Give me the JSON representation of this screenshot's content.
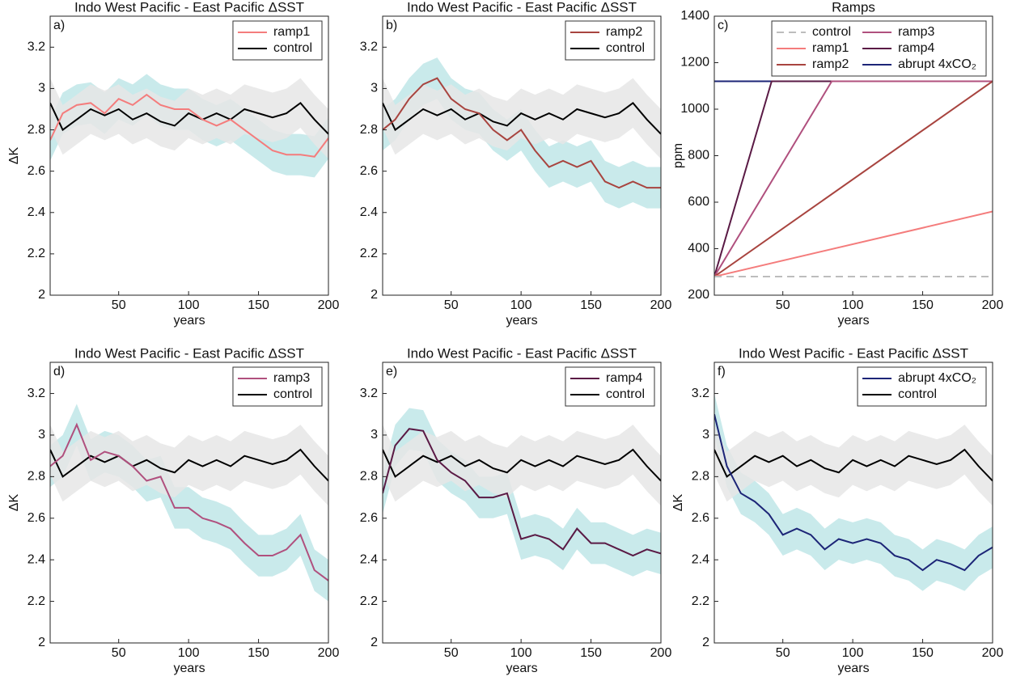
{
  "chart_data": [
    {
      "type": "line",
      "title": "Indo West Pacific - East Pacific ΔSST",
      "panel_label": "a)",
      "xlabel": "years",
      "ylabel": "ΔK",
      "x": [
        1,
        10,
        20,
        30,
        40,
        50,
        60,
        70,
        80,
        90,
        100,
        110,
        120,
        130,
        140,
        150,
        160,
        170,
        180,
        190,
        200
      ],
      "xlim": [
        1,
        200
      ],
      "ylim": [
        2,
        3.35
      ],
      "xticks": [
        50,
        100,
        150,
        200
      ],
      "yticks": [
        2,
        2.2,
        2.4,
        2.6,
        2.8,
        3,
        3.2
      ],
      "series": [
        {
          "name": "ramp1",
          "color": "#f47c7c",
          "band_color": "#bfe6e8",
          "values": [
            2.75,
            2.88,
            2.92,
            2.93,
            2.88,
            2.95,
            2.92,
            2.97,
            2.92,
            2.9,
            2.9,
            2.85,
            2.82,
            2.85,
            2.8,
            2.75,
            2.7,
            2.68,
            2.68,
            2.67,
            2.76
          ],
          "lower": [
            2.65,
            2.78,
            2.82,
            2.83,
            2.78,
            2.85,
            2.82,
            2.87,
            2.82,
            2.8,
            2.8,
            2.75,
            2.72,
            2.75,
            2.7,
            2.65,
            2.6,
            2.58,
            2.58,
            2.57,
            2.66
          ],
          "upper": [
            2.85,
            2.98,
            3.02,
            3.03,
            2.98,
            3.05,
            3.02,
            3.07,
            3.02,
            3.0,
            3.0,
            2.95,
            2.92,
            2.95,
            2.9,
            2.85,
            2.8,
            2.78,
            2.78,
            2.77,
            2.86
          ]
        },
        {
          "name": "control",
          "color": "#000000",
          "band_color": "#e6e6e6",
          "values": [
            2.93,
            2.8,
            2.85,
            2.9,
            2.87,
            2.9,
            2.85,
            2.88,
            2.84,
            2.82,
            2.88,
            2.85,
            2.88,
            2.85,
            2.9,
            2.88,
            2.86,
            2.88,
            2.93,
            2.85,
            2.78
          ],
          "lower": [
            2.81,
            2.68,
            2.73,
            2.78,
            2.75,
            2.78,
            2.73,
            2.76,
            2.72,
            2.7,
            2.76,
            2.73,
            2.76,
            2.73,
            2.78,
            2.76,
            2.74,
            2.76,
            2.81,
            2.73,
            2.66
          ],
          "upper": [
            3.05,
            2.92,
            2.97,
            3.02,
            2.99,
            3.02,
            2.97,
            3.0,
            2.96,
            2.94,
            3.0,
            2.97,
            3.0,
            2.97,
            3.02,
            3.0,
            2.98,
            3.0,
            3.05,
            2.97,
            2.9
          ]
        }
      ]
    },
    {
      "type": "line",
      "title": "Indo West Pacific - East Pacific ΔSST",
      "panel_label": "b)",
      "xlabel": "years",
      "x": [
        1,
        10,
        20,
        30,
        40,
        50,
        60,
        70,
        80,
        90,
        100,
        110,
        120,
        130,
        140,
        150,
        160,
        170,
        180,
        190,
        200
      ],
      "xlim": [
        1,
        200
      ],
      "ylim": [
        2,
        3.35
      ],
      "xticks": [
        50,
        100,
        150,
        200
      ],
      "yticks": [
        2,
        2.2,
        2.4,
        2.6,
        2.8,
        3,
        3.2
      ],
      "series": [
        {
          "name": "ramp2",
          "color": "#a8443f",
          "band_color": "#bfe6e8",
          "values": [
            2.8,
            2.85,
            2.95,
            3.02,
            3.05,
            2.95,
            2.9,
            2.88,
            2.8,
            2.75,
            2.8,
            2.7,
            2.62,
            2.65,
            2.62,
            2.65,
            2.55,
            2.52,
            2.55,
            2.52,
            2.52
          ],
          "lower": [
            2.7,
            2.75,
            2.85,
            2.92,
            2.95,
            2.85,
            2.8,
            2.78,
            2.7,
            2.65,
            2.7,
            2.6,
            2.52,
            2.55,
            2.52,
            2.55,
            2.45,
            2.42,
            2.45,
            2.42,
            2.42
          ],
          "upper": [
            2.9,
            2.95,
            3.05,
            3.12,
            3.15,
            3.05,
            3.0,
            2.98,
            2.9,
            2.85,
            2.9,
            2.8,
            2.72,
            2.75,
            2.72,
            2.75,
            2.65,
            2.62,
            2.65,
            2.62,
            2.62
          ]
        },
        {
          "name": "control",
          "color": "#000000",
          "band_color": "#e6e6e6",
          "values": [
            2.93,
            2.8,
            2.85,
            2.9,
            2.87,
            2.9,
            2.85,
            2.88,
            2.84,
            2.82,
            2.88,
            2.85,
            2.88,
            2.85,
            2.9,
            2.88,
            2.86,
            2.88,
            2.93,
            2.85,
            2.78
          ],
          "lower": [
            2.81,
            2.68,
            2.73,
            2.78,
            2.75,
            2.78,
            2.73,
            2.76,
            2.72,
            2.7,
            2.76,
            2.73,
            2.76,
            2.73,
            2.78,
            2.76,
            2.74,
            2.76,
            2.81,
            2.73,
            2.66
          ],
          "upper": [
            3.05,
            2.92,
            2.97,
            3.02,
            2.99,
            3.02,
            2.97,
            3.0,
            2.96,
            2.94,
            3.0,
            2.97,
            3.0,
            2.97,
            3.02,
            3.0,
            2.98,
            3.0,
            3.05,
            2.97,
            2.9
          ]
        }
      ]
    },
    {
      "type": "ramps",
      "title": "Ramps",
      "panel_label": "c)",
      "xlabel": "years",
      "ylabel": "ppm",
      "xlim": [
        1,
        200
      ],
      "ylim": [
        200,
        1400
      ],
      "xticks": [
        50,
        100,
        150,
        200
      ],
      "yticks": [
        200,
        400,
        600,
        800,
        1000,
        1200,
        1400
      ],
      "series": [
        {
          "name": "control",
          "color": "#bdbdbd",
          "dashed": true,
          "x": [
            1,
            200
          ],
          "values": [
            280,
            280
          ]
        },
        {
          "name": "ramp1",
          "color": "#f47c7c",
          "x": [
            1,
            200
          ],
          "values": [
            280,
            560
          ]
        },
        {
          "name": "ramp2",
          "color": "#a8443f",
          "x": [
            1,
            200
          ],
          "values": [
            280,
            1120
          ]
        },
        {
          "name": "ramp3",
          "color": "#b0507e",
          "x": [
            1,
            85,
            200
          ],
          "values": [
            280,
            1120,
            1120
          ]
        },
        {
          "name": "ramp4",
          "color": "#5a1a45",
          "x": [
            1,
            42,
            200
          ],
          "values": [
            280,
            1120,
            1120
          ]
        },
        {
          "name": "abrupt 4xCO₂",
          "color": "#1c2577",
          "x": [
            1,
            200
          ],
          "values": [
            1120,
            1120
          ]
        }
      ]
    },
    {
      "type": "line",
      "title": "Indo West Pacific - East Pacific ΔSST",
      "panel_label": "d)",
      "xlabel": "years",
      "ylabel": "ΔK",
      "x": [
        1,
        10,
        20,
        30,
        40,
        50,
        60,
        70,
        80,
        90,
        100,
        110,
        120,
        130,
        140,
        150,
        160,
        170,
        180,
        190,
        200
      ],
      "xlim": [
        1,
        200
      ],
      "ylim": [
        2,
        3.35
      ],
      "xticks": [
        50,
        100,
        150,
        200
      ],
      "yticks": [
        2,
        2.2,
        2.4,
        2.6,
        2.8,
        3,
        3.2
      ],
      "series": [
        {
          "name": "ramp3",
          "color": "#b0507e",
          "band_color": "#bfe6e8",
          "values": [
            2.85,
            2.9,
            3.05,
            2.88,
            2.92,
            2.9,
            2.85,
            2.78,
            2.8,
            2.65,
            2.65,
            2.6,
            2.58,
            2.55,
            2.48,
            2.42,
            2.42,
            2.45,
            2.52,
            2.35,
            2.3
          ],
          "lower": [
            2.75,
            2.8,
            2.95,
            2.78,
            2.82,
            2.8,
            2.75,
            2.68,
            2.7,
            2.55,
            2.55,
            2.5,
            2.48,
            2.45,
            2.38,
            2.32,
            2.32,
            2.35,
            2.42,
            2.25,
            2.2
          ],
          "upper": [
            2.95,
            3.0,
            3.15,
            2.98,
            3.02,
            3.0,
            2.95,
            2.88,
            2.9,
            2.75,
            2.75,
            2.7,
            2.68,
            2.65,
            2.58,
            2.52,
            2.52,
            2.55,
            2.62,
            2.45,
            2.4
          ]
        },
        {
          "name": "control",
          "color": "#000000",
          "band_color": "#e6e6e6",
          "values": [
            2.93,
            2.8,
            2.85,
            2.9,
            2.87,
            2.9,
            2.85,
            2.88,
            2.84,
            2.82,
            2.88,
            2.85,
            2.88,
            2.85,
            2.9,
            2.88,
            2.86,
            2.88,
            2.93,
            2.85,
            2.78
          ],
          "lower": [
            2.81,
            2.68,
            2.73,
            2.78,
            2.75,
            2.78,
            2.73,
            2.76,
            2.72,
            2.7,
            2.76,
            2.73,
            2.76,
            2.73,
            2.78,
            2.76,
            2.74,
            2.76,
            2.81,
            2.73,
            2.66
          ],
          "upper": [
            3.05,
            2.92,
            2.97,
            3.02,
            2.99,
            3.02,
            2.97,
            3.0,
            2.96,
            2.94,
            3.0,
            2.97,
            3.0,
            2.97,
            3.02,
            3.0,
            2.98,
            3.0,
            3.05,
            2.97,
            2.9
          ]
        }
      ]
    },
    {
      "type": "line",
      "title": "Indo West Pacific - East Pacific ΔSST",
      "panel_label": "e)",
      "xlabel": "years",
      "x": [
        1,
        10,
        20,
        30,
        40,
        50,
        60,
        70,
        80,
        90,
        100,
        110,
        120,
        130,
        140,
        150,
        160,
        170,
        180,
        190,
        200
      ],
      "xlim": [
        1,
        200
      ],
      "ylim": [
        2,
        3.35
      ],
      "xticks": [
        50,
        100,
        150,
        200
      ],
      "yticks": [
        2,
        2.2,
        2.4,
        2.6,
        2.8,
        3,
        3.2
      ],
      "series": [
        {
          "name": "ramp4",
          "color": "#5a1a45",
          "band_color": "#bfe6e8",
          "values": [
            2.72,
            2.95,
            3.03,
            3.02,
            2.88,
            2.82,
            2.78,
            2.7,
            2.7,
            2.72,
            2.5,
            2.52,
            2.5,
            2.45,
            2.55,
            2.48,
            2.48,
            2.45,
            2.42,
            2.45,
            2.43
          ],
          "lower": [
            2.62,
            2.85,
            2.93,
            2.92,
            2.78,
            2.72,
            2.68,
            2.6,
            2.6,
            2.62,
            2.4,
            2.42,
            2.4,
            2.35,
            2.45,
            2.38,
            2.38,
            2.35,
            2.32,
            2.35,
            2.33
          ],
          "upper": [
            2.82,
            3.05,
            3.13,
            3.12,
            2.98,
            2.92,
            2.88,
            2.8,
            2.8,
            2.82,
            2.6,
            2.62,
            2.6,
            2.55,
            2.65,
            2.58,
            2.58,
            2.55,
            2.52,
            2.55,
            2.53
          ]
        },
        {
          "name": "control",
          "color": "#000000",
          "band_color": "#e6e6e6",
          "values": [
            2.93,
            2.8,
            2.85,
            2.9,
            2.87,
            2.9,
            2.85,
            2.88,
            2.84,
            2.82,
            2.88,
            2.85,
            2.88,
            2.85,
            2.9,
            2.88,
            2.86,
            2.88,
            2.93,
            2.85,
            2.78
          ],
          "lower": [
            2.81,
            2.68,
            2.73,
            2.78,
            2.75,
            2.78,
            2.73,
            2.76,
            2.72,
            2.7,
            2.76,
            2.73,
            2.76,
            2.73,
            2.78,
            2.76,
            2.74,
            2.76,
            2.81,
            2.73,
            2.66
          ],
          "upper": [
            3.05,
            2.92,
            2.97,
            3.02,
            2.99,
            3.02,
            2.97,
            3.0,
            2.96,
            2.94,
            3.0,
            2.97,
            3.0,
            2.97,
            3.02,
            3.0,
            2.98,
            3.0,
            3.05,
            2.97,
            2.9
          ]
        }
      ]
    },
    {
      "type": "line",
      "title": "Indo West Pacific - East Pacific ΔSST",
      "panel_label": "f)",
      "xlabel": "years",
      "ylabel": "ΔK",
      "x": [
        1,
        10,
        20,
        30,
        40,
        50,
        60,
        70,
        80,
        90,
        100,
        110,
        120,
        130,
        140,
        150,
        160,
        170,
        180,
        190,
        200
      ],
      "xlim": [
        1,
        200
      ],
      "ylim": [
        2,
        3.35
      ],
      "xticks": [
        50,
        100,
        150,
        200
      ],
      "yticks": [
        2,
        2.2,
        2.4,
        2.6,
        2.8,
        3,
        3.2
      ],
      "series": [
        {
          "name": "abrupt 4xCO₂",
          "color": "#1c2577",
          "band_color": "#bfe6e8",
          "values": [
            3.1,
            2.85,
            2.72,
            2.68,
            2.62,
            2.52,
            2.55,
            2.52,
            2.45,
            2.5,
            2.48,
            2.5,
            2.48,
            2.42,
            2.4,
            2.35,
            2.4,
            2.38,
            2.35,
            2.42,
            2.46
          ],
          "lower": [
            3.0,
            2.75,
            2.62,
            2.58,
            2.52,
            2.42,
            2.45,
            2.42,
            2.35,
            2.4,
            2.38,
            2.4,
            2.38,
            2.32,
            2.3,
            2.25,
            2.3,
            2.28,
            2.25,
            2.32,
            2.36
          ],
          "upper": [
            3.2,
            2.95,
            2.82,
            2.78,
            2.72,
            2.62,
            2.65,
            2.62,
            2.55,
            2.6,
            2.58,
            2.6,
            2.58,
            2.52,
            2.5,
            2.45,
            2.5,
            2.48,
            2.45,
            2.52,
            2.56
          ]
        },
        {
          "name": "control",
          "color": "#000000",
          "band_color": "#e6e6e6",
          "values": [
            2.93,
            2.8,
            2.85,
            2.9,
            2.87,
            2.9,
            2.85,
            2.88,
            2.84,
            2.82,
            2.88,
            2.85,
            2.88,
            2.85,
            2.9,
            2.88,
            2.86,
            2.88,
            2.93,
            2.85,
            2.78
          ],
          "lower": [
            2.81,
            2.68,
            2.73,
            2.78,
            2.75,
            2.78,
            2.73,
            2.76,
            2.72,
            2.7,
            2.76,
            2.73,
            2.76,
            2.73,
            2.78,
            2.76,
            2.74,
            2.76,
            2.81,
            2.73,
            2.66
          ],
          "upper": [
            3.05,
            2.92,
            2.97,
            3.02,
            2.99,
            3.02,
            2.97,
            3.0,
            2.96,
            2.94,
            3.0,
            2.97,
            3.0,
            2.97,
            3.02,
            3.0,
            2.98,
            3.0,
            3.05,
            2.97,
            2.9
          ]
        }
      ]
    }
  ]
}
